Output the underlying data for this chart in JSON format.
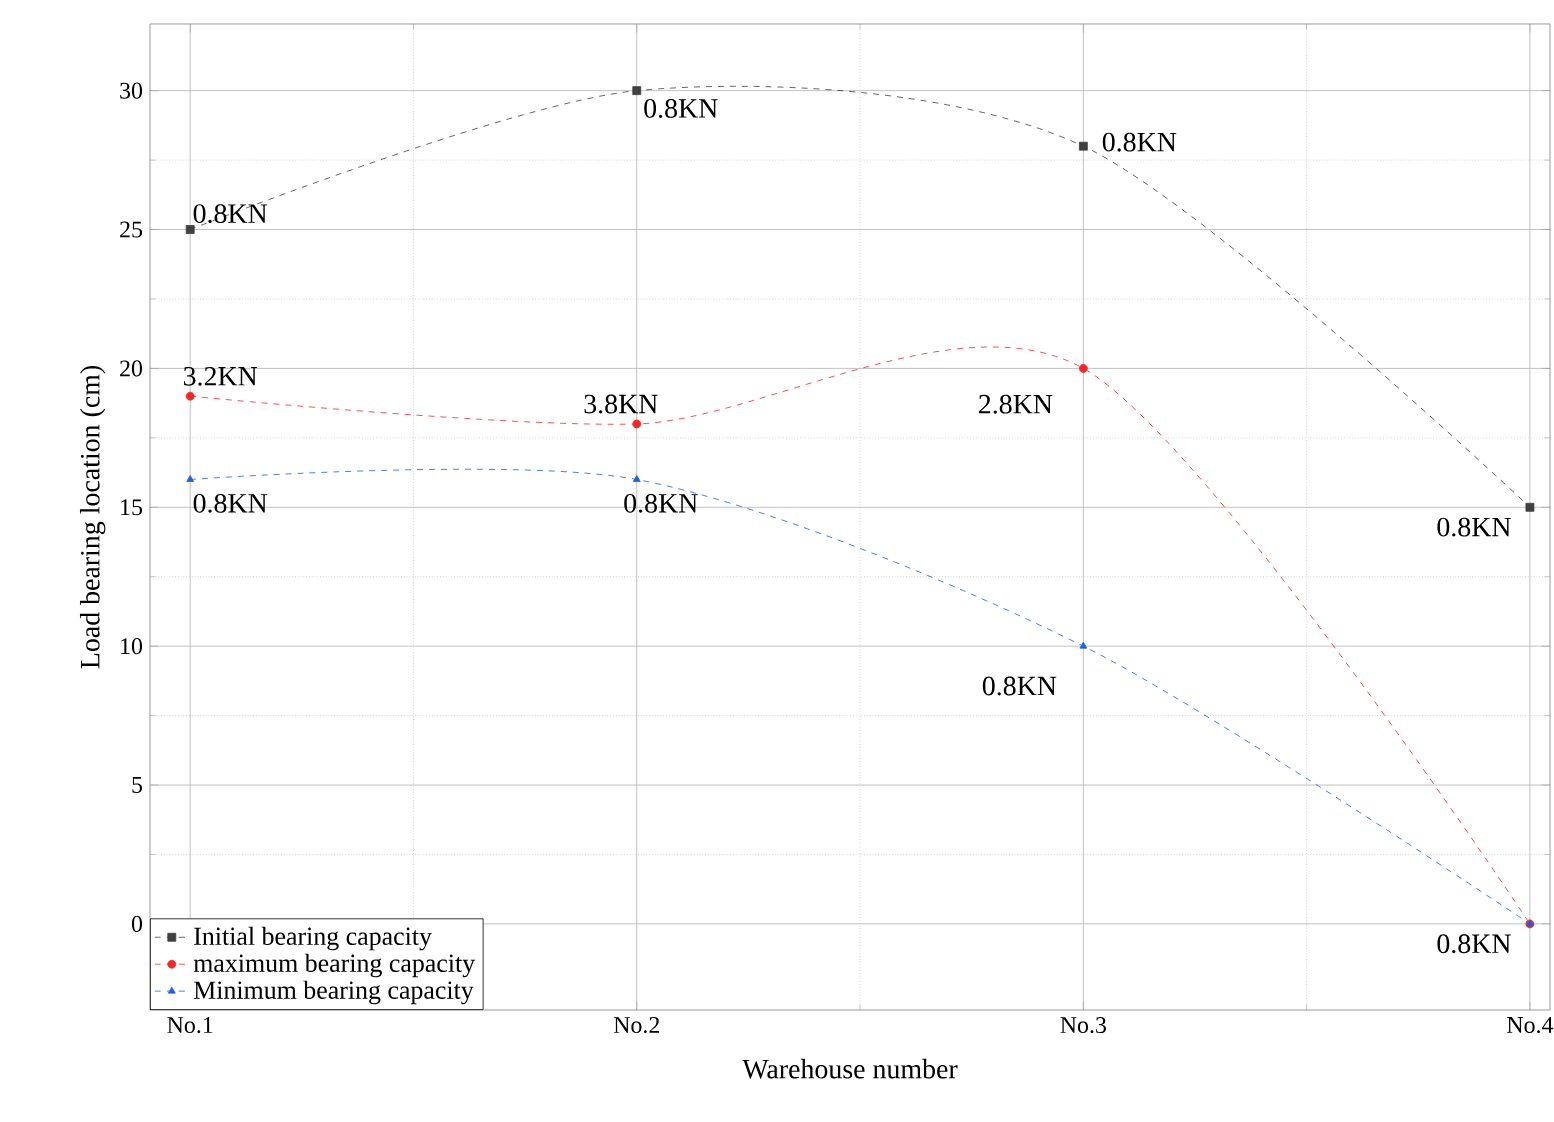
{
  "chart_data": {
    "type": "line",
    "xlabel": "Warehouse number",
    "ylabel": "Load bearing location (cm)",
    "categories": [
      "No.1",
      "No.2",
      "No.3",
      "No.4"
    ],
    "series": [
      {
        "name": "Initial bearing capacity",
        "color": "#404040",
        "marker": "square",
        "values": [
          25,
          30,
          28,
          15
        ]
      },
      {
        "name": "maximum bearing capacity",
        "color": "#f02828",
        "marker": "circle",
        "values": [
          19,
          18,
          20,
          0
        ]
      },
      {
        "name": "Minimum bearing capacity",
        "color": "#2060e0",
        "marker": "triangle",
        "values": [
          16,
          16,
          10,
          0
        ]
      }
    ],
    "annotations": [
      {
        "text": "0.8KN",
        "x": "No.1",
        "y": 25
      },
      {
        "text": "0.8KN",
        "x": "No.2",
        "y": 30
      },
      {
        "text": "0.8KN",
        "x": "No.3",
        "y": 28
      },
      {
        "text": "0.8KN",
        "x": "No.4",
        "y": 15
      },
      {
        "text": "3.2KN",
        "x": "No.1",
        "y": 19
      },
      {
        "text": "3.8KN",
        "x": "No.2",
        "y": 18
      },
      {
        "text": "2.8KN",
        "x": "No.3",
        "y": 20
      },
      {
        "text": "0.8KN",
        "x": "No.1",
        "y": 16
      },
      {
        "text": "0.8KN",
        "x": "No.2",
        "y": 16
      },
      {
        "text": "0.8KN",
        "x": "No.3",
        "y": 10
      },
      {
        "text": "0.8KN",
        "x": "No.4",
        "y": 0
      }
    ],
    "ylim": [
      -3.1,
      32.4
    ],
    "yticks": [
      0,
      5,
      10,
      15,
      20,
      25,
      30
    ],
    "grid": true,
    "legend": "bottom left",
    "line_style": "dashed"
  }
}
